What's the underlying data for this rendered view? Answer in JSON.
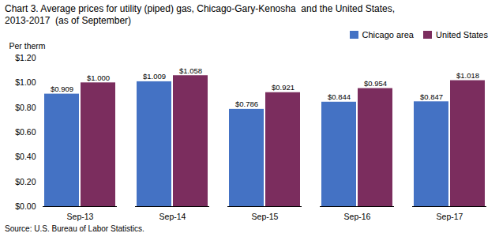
{
  "chart_data": {
    "type": "bar",
    "title": "Chart 3. Average prices for utility (piped) gas, Chicago-Gary-Kenosha  and the United States,",
    "subtitle": "2013-2017  (as of September)",
    "ylabel": "Per therm",
    "caption": "Source: U.S. Bureau of Labor Statistics.",
    "categories": [
      "Sep-13",
      "Sep-14",
      "Sep-15",
      "Sep-16",
      "Sep-17"
    ],
    "series": [
      {
        "name": "Chicago area",
        "color": "#4472C4",
        "values": [
          0.909,
          1.009,
          0.786,
          0.844,
          0.847
        ],
        "value_labels": [
          "$0.909",
          "$1.009",
          "$0.786",
          "$0.844",
          "$0.847"
        ]
      },
      {
        "name": "United States",
        "color": "#7B2D5E",
        "values": [
          1.0,
          1.058,
          0.921,
          0.954,
          1.018
        ],
        "value_labels": [
          "$1.000",
          "$1.058",
          "$0.921",
          "$0.954",
          "$1.018"
        ]
      }
    ],
    "ylim": [
      0,
      1.2
    ],
    "yticks": [
      {
        "value": 0.0,
        "label": "$0.00"
      },
      {
        "value": 0.2,
        "label": "$0.20"
      },
      {
        "value": 0.4,
        "label": "$0.40"
      },
      {
        "value": 0.6,
        "label": "$0.60"
      },
      {
        "value": 0.8,
        "label": "$0.80"
      },
      {
        "value": 1.0,
        "label": "$1.00"
      },
      {
        "value": 1.2,
        "label": "$1.20"
      }
    ],
    "grid": false,
    "legend": "upper right",
    "data_labels": true
  }
}
